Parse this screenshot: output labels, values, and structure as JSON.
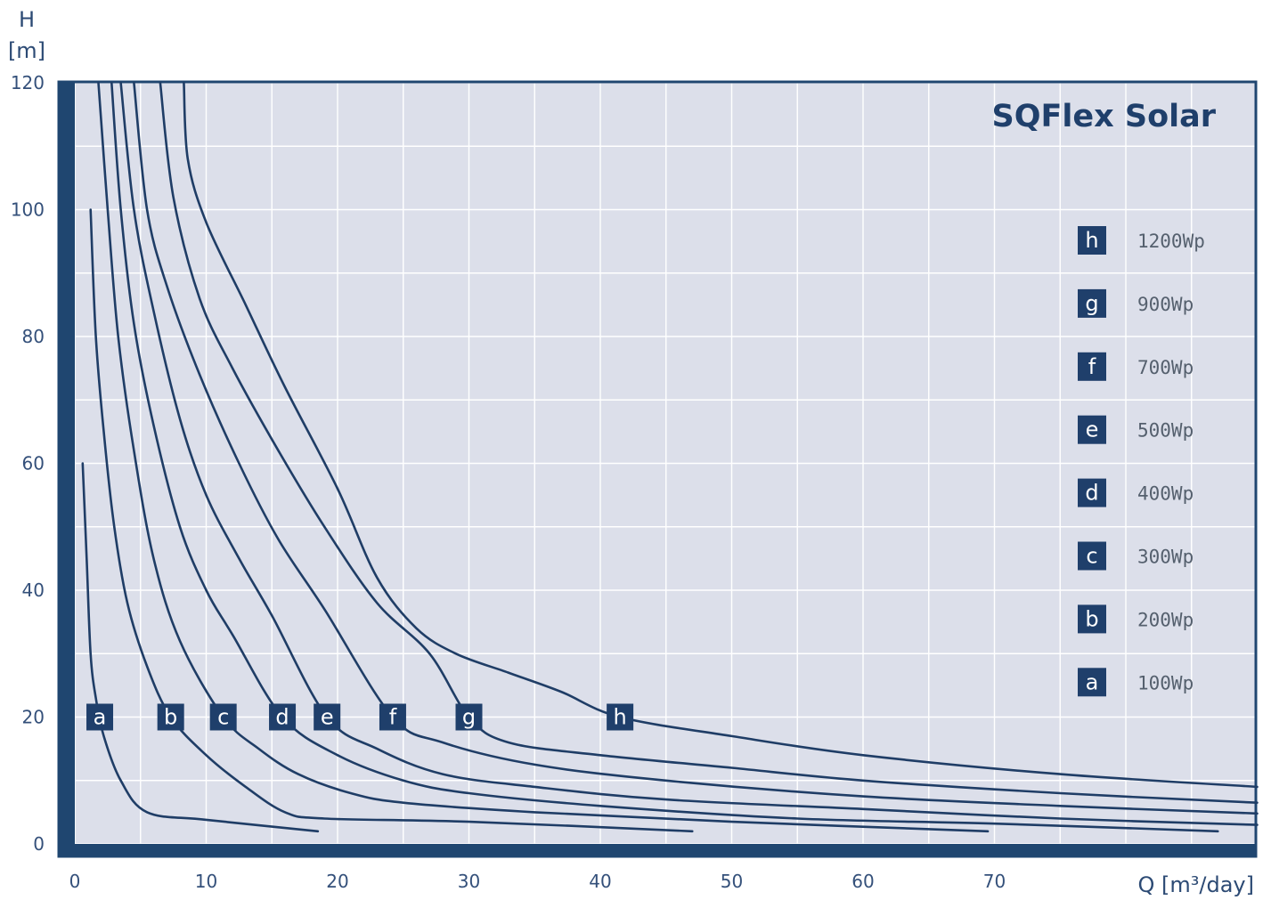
{
  "chart_data": {
    "type": "line",
    "title": "SQFlex Solar",
    "ylabel_top": "H",
    "ylabel_bottom": "[m]",
    "xlabel": "Q [m³/day]",
    "xlim": [
      0,
      90
    ],
    "ylim": [
      0,
      120
    ],
    "x_ticks": [
      "0",
      "10",
      "20",
      "30",
      "40",
      "50",
      "60",
      "70"
    ],
    "y_ticks": [
      "0",
      "20",
      "40",
      "60",
      "80",
      "100",
      "120"
    ],
    "grid": true,
    "legend_position": "right",
    "colors": {
      "background": "#dcdfea",
      "grid": "#ffffff",
      "frame": "#1f4670",
      "curve": "#1f3d66",
      "badge": "#1f3f6b"
    },
    "series": [
      {
        "name": "100Wp",
        "label": "a",
        "label_point": [
          1.9,
          20
        ],
        "points": [
          [
            0.6,
            60
          ],
          [
            0.9,
            45
          ],
          [
            1.2,
            30
          ],
          [
            1.6,
            23
          ],
          [
            2.2,
            17
          ],
          [
            3.5,
            10
          ],
          [
            5.5,
            5
          ],
          [
            10,
            3.8
          ],
          [
            18.5,
            2
          ]
        ]
      },
      {
        "name": "200Wp",
        "label": "b",
        "label_point": [
          7.3,
          20
        ],
        "points": [
          [
            1.2,
            100
          ],
          [
            1.6,
            80
          ],
          [
            2.2,
            65
          ],
          [
            3,
            50
          ],
          [
            4,
            38
          ],
          [
            5.5,
            28
          ],
          [
            7.3,
            20
          ],
          [
            10,
            14
          ],
          [
            13,
            9
          ],
          [
            16,
            5
          ],
          [
            19,
            4
          ],
          [
            30,
            3.5
          ],
          [
            47,
            2
          ]
        ]
      },
      {
        "name": "300Wp",
        "label": "c",
        "label_point": [
          11.3,
          20
        ],
        "points": [
          [
            1.8,
            120
          ],
          [
            2.5,
            100
          ],
          [
            3.3,
            80
          ],
          [
            4.5,
            62
          ],
          [
            6,
            45
          ],
          [
            8,
            32
          ],
          [
            11.3,
            20
          ],
          [
            14,
            15
          ],
          [
            17,
            11
          ],
          [
            21,
            8
          ],
          [
            25,
            6.5
          ],
          [
            35,
            5
          ],
          [
            50,
            3.5
          ],
          [
            69.5,
            2
          ]
        ]
      },
      {
        "name": "400Wp",
        "label": "d",
        "label_point": [
          15.8,
          20
        ],
        "points": [
          [
            2.8,
            120
          ],
          [
            3.5,
            100
          ],
          [
            4.5,
            82
          ],
          [
            6,
            66
          ],
          [
            8,
            50
          ],
          [
            10,
            40
          ],
          [
            12,
            33
          ],
          [
            15.8,
            20
          ],
          [
            20,
            14
          ],
          [
            25,
            10
          ],
          [
            30,
            8
          ],
          [
            40,
            6
          ],
          [
            55,
            4
          ],
          [
            70,
            3.2
          ],
          [
            87,
            2
          ]
        ]
      },
      {
        "name": "500Wp",
        "label": "e",
        "label_point": [
          19.2,
          20
        ],
        "points": [
          [
            3.5,
            120
          ],
          [
            4.5,
            100
          ],
          [
            6,
            84
          ],
          [
            8,
            67
          ],
          [
            10,
            55
          ],
          [
            12.5,
            45
          ],
          [
            15,
            36
          ],
          [
            19.2,
            20
          ],
          [
            23,
            15
          ],
          [
            28,
            11
          ],
          [
            35,
            9
          ],
          [
            45,
            7
          ],
          [
            60,
            5.5
          ],
          [
            75,
            4
          ],
          [
            90,
            3
          ]
        ]
      },
      {
        "name": "700Wp",
        "label": "f",
        "label_point": [
          24.2,
          20
        ],
        "points": [
          [
            4.5,
            120
          ],
          [
            5.5,
            100
          ],
          [
            7,
            88
          ],
          [
            9.5,
            74
          ],
          [
            12.5,
            60
          ],
          [
            15.5,
            48
          ],
          [
            19,
            37
          ],
          [
            24.2,
            20
          ],
          [
            28,
            16
          ],
          [
            35,
            12.5
          ],
          [
            45,
            10
          ],
          [
            60,
            7.5
          ],
          [
            75,
            6
          ],
          [
            90,
            4.8
          ]
        ]
      },
      {
        "name": "900Wp",
        "label": "g",
        "label_point": [
          30,
          20
        ],
        "points": [
          [
            6.5,
            120
          ],
          [
            7.5,
            102
          ],
          [
            9.5,
            86
          ],
          [
            12,
            75
          ],
          [
            15.5,
            62
          ],
          [
            19,
            50
          ],
          [
            23,
            38
          ],
          [
            27,
            30
          ],
          [
            30,
            20
          ],
          [
            33,
            16
          ],
          [
            40,
            14
          ],
          [
            50,
            12
          ],
          [
            60,
            10
          ],
          [
            75,
            8
          ],
          [
            90,
            6.5
          ]
        ]
      },
      {
        "name": "1200Wp",
        "label": "h",
        "label_point": [
          41.5,
          20
        ],
        "points": [
          [
            8.3,
            120
          ],
          [
            8.6,
            108
          ],
          [
            10,
            98
          ],
          [
            13,
            85
          ],
          [
            16,
            72
          ],
          [
            20,
            56
          ],
          [
            23,
            42
          ],
          [
            26,
            34
          ],
          [
            29,
            30
          ],
          [
            33,
            27
          ],
          [
            37,
            24
          ],
          [
            41.5,
            20
          ],
          [
            50,
            17
          ],
          [
            60,
            14
          ],
          [
            75,
            11
          ],
          [
            90,
            9
          ]
        ]
      }
    ]
  }
}
